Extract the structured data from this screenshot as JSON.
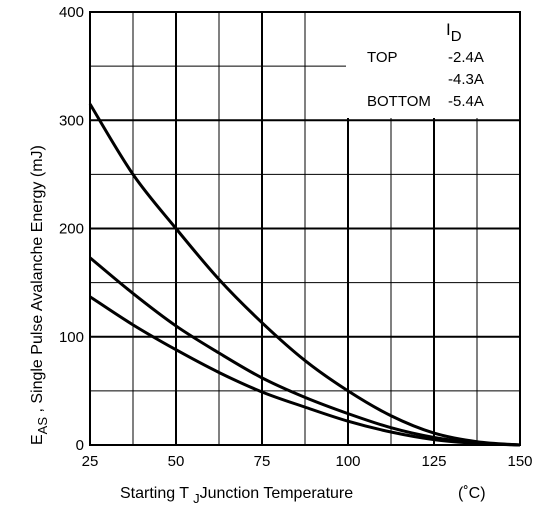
{
  "chart_data": {
    "type": "line",
    "xlabel": {
      "main": "Starting T",
      "sub": "J",
      "rest": "Junction Temperature",
      "unit": "(˚C)"
    },
    "ylabel": {
      "main": "E",
      "sub": "AS",
      "rest": " , Single Pulse Avalanche Energy (mJ)"
    },
    "xlim": [
      25,
      150
    ],
    "ylim": [
      0,
      400
    ],
    "xticks": [
      "25",
      "50",
      "75",
      "100",
      "125",
      "150"
    ],
    "yticks": [
      "0",
      "100",
      "200",
      "300",
      "400"
    ],
    "x_minor_step": 12.5,
    "y_minor_step": 50,
    "grid": true,
    "legend": {
      "position": "top-right",
      "header_main": "I",
      "header_sub": "D",
      "rows": [
        {
          "label": "TOP",
          "value": "-2.4A"
        },
        {
          "label": "",
          "value": "-4.3A"
        },
        {
          "label": "BOTTOM",
          "value": "-5.4A"
        }
      ]
    },
    "series": [
      {
        "x": [
          25,
          37.5,
          50,
          62.5,
          75,
          87.5,
          100,
          112.5,
          125,
          137.5,
          150
        ],
        "values": [
          315,
          250,
          200,
          153,
          113,
          78,
          50,
          27,
          11,
          3,
          0
        ]
      },
      {
        "x": [
          25,
          37.5,
          50,
          62.5,
          75,
          87.5,
          100,
          112.5,
          125,
          137.5,
          150
        ],
        "values": [
          173,
          140,
          110,
          85,
          62,
          44,
          29,
          16,
          7,
          2,
          0
        ]
      },
      {
        "x": [
          25,
          37.5,
          50,
          62.5,
          75,
          87.5,
          100,
          112.5,
          125,
          137.5,
          150
        ],
        "values": [
          137,
          111,
          88,
          67,
          49,
          35,
          22,
          12,
          5,
          1.5,
          0
        ]
      }
    ]
  }
}
